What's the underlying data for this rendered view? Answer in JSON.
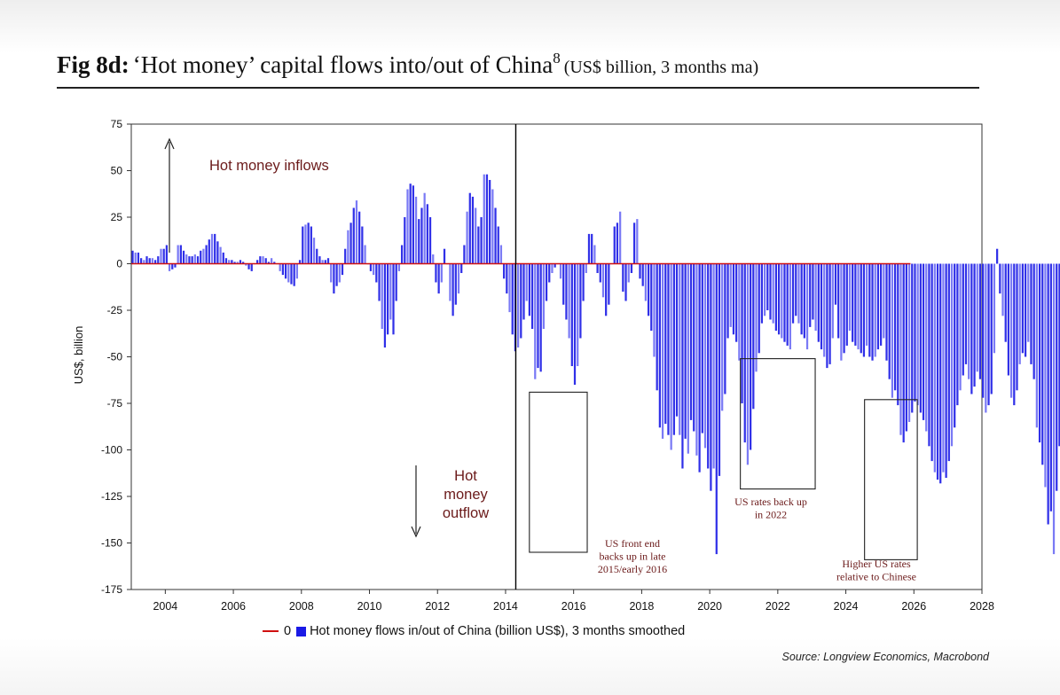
{
  "title": {
    "fig": "Fig 8d:",
    "main": "‘Hot money’ capital flows into/out of China",
    "superscript": "8",
    "units": "(US$ billion, 3 months ma)"
  },
  "source": "Source: Longview Economics, Macrobond",
  "colors": {
    "bar": "#3030e8",
    "bar_light": "#7a7af5",
    "zero_line": "#d01010",
    "annotation": "#6b1a1a"
  },
  "chart_data": {
    "type": "bar",
    "ylabel": "US$, billion",
    "xlabel": "",
    "ylim": [
      -175,
      75
    ],
    "xlim": [
      2003,
      2028
    ],
    "yticks": [
      75,
      50,
      25,
      0,
      -25,
      -50,
      -75,
      -100,
      -125,
      -150,
      -175
    ],
    "xticks": [
      2004,
      2006,
      2008,
      2010,
      2012,
      2014,
      2016,
      2018,
      2020,
      2022,
      2024,
      2026,
      2028
    ],
    "legend": {
      "line_label": "0",
      "bar_label": "Hot money flows in/out of China (billion US$), 3 months smoothed",
      "placement": "bottom"
    },
    "vertical_marker_year": 2014.3,
    "annotations": {
      "inflows": "Hot money inflows",
      "outflow_lines": [
        "Hot",
        "money",
        "outflow"
      ],
      "box1_lines": [
        "US front end",
        "backs up in late",
        "2015/early 2016"
      ],
      "box2_lines": [
        "US rates back up",
        "in 2022"
      ],
      "box3_lines": [
        "Higher US rates",
        "relative to Chinese"
      ]
    },
    "highlight_boxes": [
      {
        "x0": 2014.7,
        "x1": 2016.4,
        "y0": -69,
        "y1": -155
      },
      {
        "x0": 2020.9,
        "x1": 2023.1,
        "y0": -51,
        "y1": -121
      },
      {
        "x0": 2024.55,
        "x1": 2026.1,
        "y0": -73,
        "y1": -159
      }
    ],
    "series": [
      {
        "name": "0",
        "type": "line",
        "x": [
          2003,
          2025.9
        ],
        "values": [
          0,
          0
        ]
      },
      {
        "name": "Hot money flows in/out of China (billion US$), 3 months smoothed",
        "type": "bar",
        "start": 2003.04,
        "step": 0.0833,
        "values": [
          7,
          6,
          6,
          3,
          2,
          4,
          3,
          3,
          2,
          4,
          8,
          8,
          10,
          -4,
          -3,
          -2,
          10,
          10,
          7,
          5,
          4,
          4,
          5,
          4,
          7,
          8,
          10,
          13,
          16,
          16,
          12,
          9,
          6,
          3,
          2,
          2,
          1,
          1,
          2,
          1,
          -1,
          -3,
          -4,
          0,
          2,
          4,
          4,
          3,
          1,
          3,
          1,
          0,
          -4,
          -6,
          -8,
          -10,
          -11,
          -12,
          -8,
          2,
          20,
          21,
          22,
          20,
          14,
          8,
          4,
          2,
          2,
          3,
          -10,
          -16,
          -12,
          -10,
          -6,
          8,
          18,
          22,
          30,
          34,
          28,
          20,
          10,
          0,
          -4,
          -6,
          -10,
          -20,
          -35,
          -45,
          -38,
          -30,
          -38,
          -20,
          -4,
          10,
          25,
          40,
          43,
          42,
          36,
          24,
          30,
          38,
          32,
          25,
          5,
          -10,
          -16,
          -10,
          8,
          0,
          -20,
          -28,
          -22,
          -16,
          -5,
          10,
          28,
          38,
          36,
          30,
          20,
          25,
          48,
          48,
          45,
          40,
          30,
          20,
          10,
          -8,
          -16,
          -26,
          -38,
          -47,
          -45,
          -40,
          -30,
          -20,
          -28,
          -35,
          -62,
          -56,
          -58,
          -35,
          -20,
          -10,
          -5,
          -2,
          0,
          -8,
          -22,
          -30,
          -40,
          -55,
          -65,
          -55,
          -40,
          -20,
          -5,
          16,
          16,
          10,
          -5,
          -10,
          -18,
          -28,
          -22,
          0,
          20,
          22,
          28,
          -15,
          -20,
          -10,
          -5,
          22,
          24,
          -8,
          -12,
          -20,
          -28,
          -36,
          -50,
          -68,
          -88,
          -94,
          -86,
          -92,
          -100,
          -92,
          -82,
          -92,
          -110,
          -94,
          -102,
          -84,
          -90,
          -103,
          -112,
          -91,
          -99,
          -110,
          -122,
          -110,
          -156,
          -114,
          -79,
          -70,
          -40,
          -34,
          -38,
          -42,
          -52,
          -75,
          -96,
          -108,
          -100,
          -78,
          -58,
          -48,
          -32,
          -28,
          -25,
          -30,
          -32,
          -36,
          -38,
          -40,
          -42,
          -44,
          -46,
          -32,
          -28,
          -32,
          -38,
          -40,
          -46,
          -34,
          -30,
          -36,
          -42,
          -46,
          -50,
          -56,
          -54,
          -40,
          -22,
          -40,
          -52,
          -48,
          -44,
          -36,
          -42,
          -44,
          -46,
          -48,
          -50,
          -44,
          -50,
          -52,
          -50,
          -46,
          -44,
          -40,
          -52,
          -62,
          -72,
          -68,
          -76,
          -92,
          -96,
          -90,
          -85,
          -80,
          -74,
          -76,
          -80,
          -84,
          -90,
          -98,
          -106,
          -112,
          -116,
          -118,
          -112,
          -115,
          -106,
          -98,
          -88,
          -76,
          -68,
          -60,
          -54,
          -62,
          -70,
          -66,
          -58,
          -62,
          -72,
          -80,
          -76,
          -70,
          -48,
          8,
          -16,
          -28,
          -42,
          -60,
          -72,
          -76,
          -68,
          -54,
          -48,
          -50,
          -42,
          -54,
          -62,
          -88,
          -96,
          -108,
          -120,
          -140,
          -133,
          -156,
          -122,
          -98,
          -90,
          -88,
          -80
        ]
      }
    ]
  }
}
